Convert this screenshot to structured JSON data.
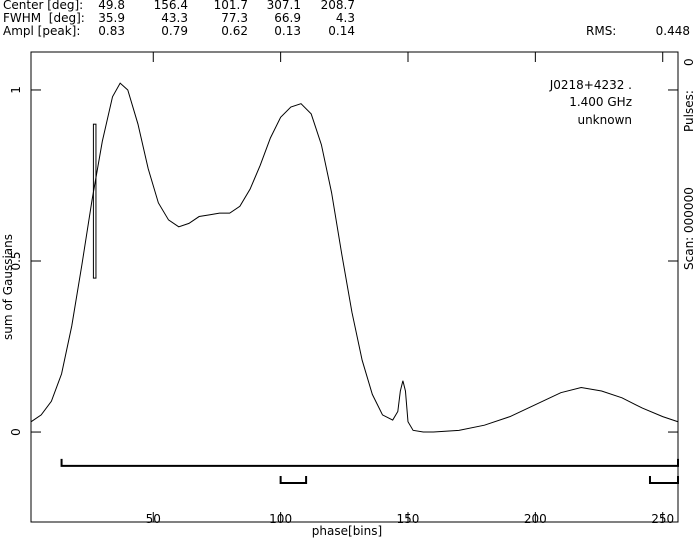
{
  "header": {
    "rows": [
      {
        "label": "Center [deg]:",
        "values": [
          49.8,
          156.4,
          101.7,
          307.1,
          208.7
        ]
      },
      {
        "label": "FWHM  [deg]:",
        "values": [
          35.9,
          43.3,
          77.3,
          66.9,
          4.3
        ]
      },
      {
        "label": "Ampl [peak]:",
        "values": [
          0.83,
          0.79,
          0.62,
          0.13,
          0.14
        ]
      }
    ],
    "rms_label": "RMS:",
    "rms": 0.448
  },
  "chart_data": {
    "type": "line",
    "x_label": "phase[bins]",
    "y_label": "sum of Gaussians",
    "annotations": [
      "J0218+4232 .",
      "1.400 GHz",
      "unknown"
    ],
    "right_labels": [
      "Scan: 000000",
      "Pulses:",
      "0"
    ],
    "xlim": [
      2,
      256
    ],
    "ylim": [
      -0.263,
      1.111
    ],
    "xticks": [
      50,
      100,
      150,
      200,
      250
    ],
    "yticks": [
      0,
      0.5,
      1
    ],
    "grid": false,
    "series": [
      {
        "color": "#000000",
        "x": [
          2,
          6,
          10,
          14,
          18,
          22,
          26,
          30,
          34,
          37,
          40,
          44,
          48,
          52,
          56,
          60,
          64,
          68,
          72,
          76,
          80,
          84,
          88,
          92,
          96,
          100,
          104,
          108,
          112,
          116,
          120,
          124,
          128,
          132,
          136,
          140,
          144,
          146,
          147,
          148,
          149,
          150,
          152,
          156,
          160,
          170,
          180,
          190,
          200,
          210,
          218,
          226,
          234,
          242,
          250,
          256
        ],
        "values": [
          0.03,
          0.05,
          0.09,
          0.17,
          0.31,
          0.49,
          0.68,
          0.85,
          0.98,
          1.02,
          1.0,
          0.9,
          0.77,
          0.67,
          0.62,
          0.6,
          0.61,
          0.63,
          0.635,
          0.64,
          0.64,
          0.66,
          0.71,
          0.78,
          0.86,
          0.92,
          0.95,
          0.96,
          0.93,
          0.84,
          0.7,
          0.52,
          0.35,
          0.21,
          0.11,
          0.05,
          0.035,
          0.06,
          0.12,
          0.15,
          0.12,
          0.03,
          0.005,
          0.0,
          0.0,
          0.005,
          0.02,
          0.045,
          0.08,
          0.115,
          0.13,
          0.12,
          0.1,
          0.07,
          0.045,
          0.03
        ]
      }
    ],
    "box": {
      "x": [
        26.5,
        27.5
      ],
      "y": [
        0.45,
        0.9
      ]
    },
    "brackets": [
      {
        "x": [
          14,
          256
        ],
        "y": -0.099
      },
      {
        "x": [
          100,
          110
        ],
        "y": -0.149
      },
      {
        "x": [
          245,
          256
        ],
        "y": -0.149
      }
    ]
  }
}
